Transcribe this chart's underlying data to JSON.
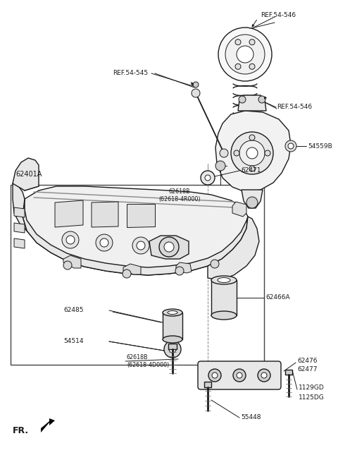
{
  "bg_color": "#ffffff",
  "line_color": "#1a1a1a",
  "figsize": [
    4.8,
    6.52
  ],
  "dpi": 100,
  "labels": {
    "REF54546_top": "REF.54-546",
    "REF54545": "REF.54-545",
    "REF54546_right": "REF.54-546",
    "54559B": "54559B",
    "62618B_top": "62618B\n(62618-4R000)",
    "62401A": "62401A",
    "62471": "62471",
    "62466A": "62466A",
    "62485": "62485",
    "54514": "54514",
    "62618B_bot": "62618B\n(62618-4D000)",
    "62476": "62476",
    "62477": "62477",
    "1129GD": "1129GD",
    "1125DG": "1125DG",
    "55448": "55448",
    "FR": "FR."
  }
}
